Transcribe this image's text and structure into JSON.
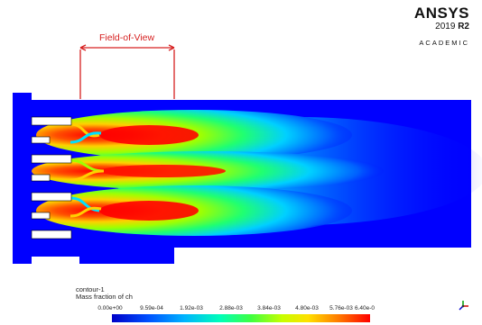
{
  "brand": {
    "name": "ANSYS",
    "version_prefix": "2019 ",
    "version_release": "R2",
    "edition": "ACADEMIC"
  },
  "annotation": {
    "field_of_view_label": "Field-of-View"
  },
  "legend": {
    "contour_name": "contour-1",
    "variable": "Mass fraction of ch",
    "tick_labels": [
      "0.00e+00",
      "9.59e-04",
      "1.92e-03",
      "2.88e-03",
      "3.84e-03",
      "4.80e-03",
      "5.76e-03",
      "6.40e-0"
    ],
    "colors": {
      "min": "#0000c8",
      "max": "#ff0000",
      "annotation": "#d62020",
      "background_field": "#0000ff"
    }
  }
}
